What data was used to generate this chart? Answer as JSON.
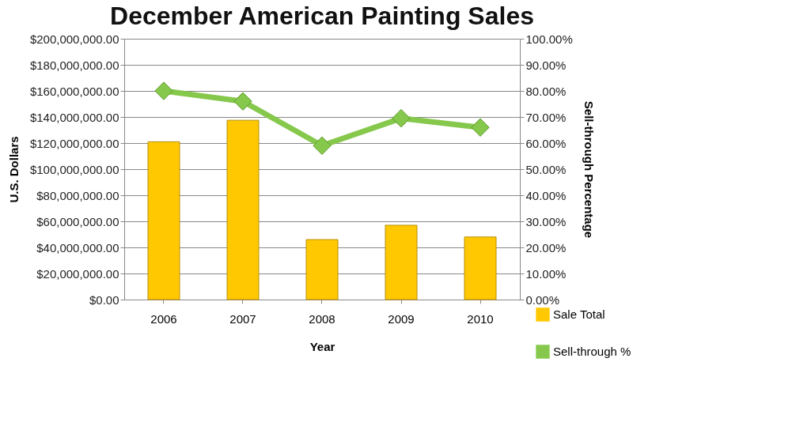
{
  "chart_data": {
    "type": "bar",
    "title": "December American Painting Sales",
    "xlabel": "Year",
    "ylabel": "U.S. Dollars",
    "y2label": "Sell-through Percentage",
    "categories": [
      "2006",
      "2007",
      "2008",
      "2009",
      "2010"
    ],
    "series": [
      {
        "name": "Sale Total",
        "color": "#ffc800",
        "values": [
          121000000,
          137500000,
          46000000,
          57000000,
          48000000
        ]
      },
      {
        "name": "Sell-through %",
        "type": "line",
        "axis": "y2",
        "color": "#86c84c",
        "marker": "diamond",
        "values": [
          80,
          76,
          59,
          69.5,
          66
        ]
      }
    ],
    "ylim": [
      0,
      200000000
    ],
    "yticks": [
      {
        "value": 0,
        "label": "$0.00"
      },
      {
        "value": 20000000,
        "label": "$20,000,000.00"
      },
      {
        "value": 40000000,
        "label": "$40,000,000.00"
      },
      {
        "value": 60000000,
        "label": "$60,000,000.00"
      },
      {
        "value": 80000000,
        "label": "$80,000,000.00"
      },
      {
        "value": 100000000,
        "label": "$100,000,000.00"
      },
      {
        "value": 120000000,
        "label": "$120,000,000.00"
      },
      {
        "value": 140000000,
        "label": "$140,000,000.00"
      },
      {
        "value": 160000000,
        "label": "$160,000,000.00"
      },
      {
        "value": 180000000,
        "label": "$180,000,000.00"
      },
      {
        "value": 200000000,
        "label": "$200,000,000.00"
      }
    ],
    "y2lim": [
      0,
      100
    ],
    "y2ticks": [
      {
        "value": 0,
        "label": "0.00%"
      },
      {
        "value": 10,
        "label": "10.00%"
      },
      {
        "value": 20,
        "label": "20.00%"
      },
      {
        "value": 30,
        "label": "30.00%"
      },
      {
        "value": 40,
        "label": "40.00%"
      },
      {
        "value": 50,
        "label": "50.00%"
      },
      {
        "value": 60,
        "label": "60.00%"
      },
      {
        "value": 70,
        "label": "70.00%"
      },
      {
        "value": 80,
        "label": "80.00%"
      },
      {
        "value": 90,
        "label": "90.00%"
      },
      {
        "value": 100,
        "label": "100.00%"
      }
    ],
    "grid": "y",
    "legend": "bottom right",
    "line_style": "solid"
  }
}
